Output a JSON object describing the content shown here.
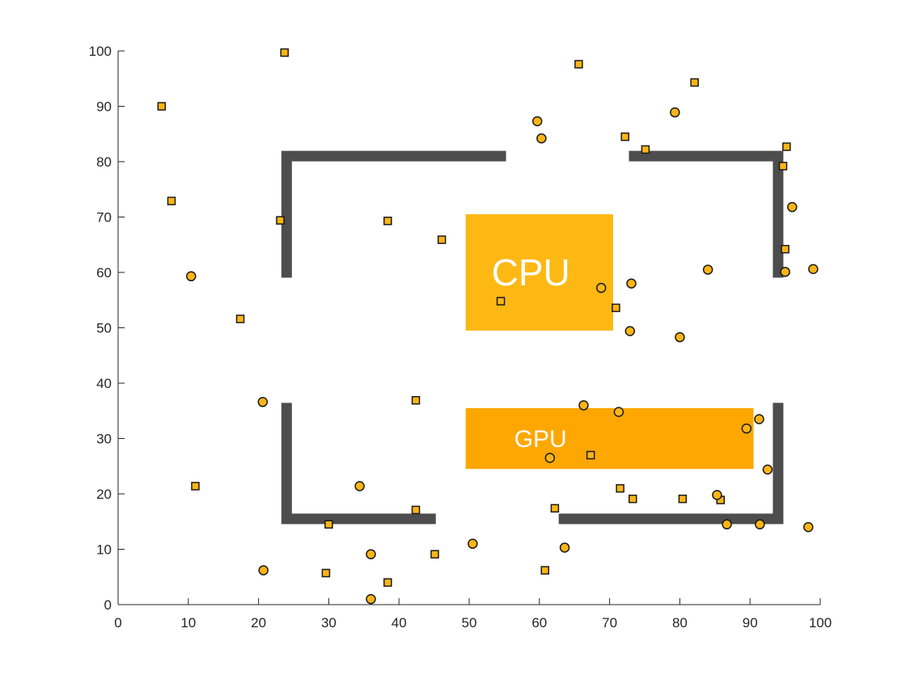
{
  "chart_data": {
    "type": "scatter",
    "title": "",
    "xlabel": "",
    "ylabel": "",
    "xlim": [
      0,
      100
    ],
    "ylim": [
      0,
      100
    ],
    "x_ticks": [
      "0",
      "10",
      "20",
      "30",
      "40",
      "50",
      "60",
      "70",
      "80",
      "90",
      "100"
    ],
    "y_ticks": [
      "0",
      "10",
      "20",
      "30",
      "40",
      "50",
      "60",
      "70",
      "80",
      "90",
      "100"
    ],
    "grid": false,
    "colors": {
      "marker_fill": "#fdb515",
      "marker_edge": "#1a1a1a",
      "wall": "#4d4d4d",
      "cpu": "#fdb813",
      "gpu": "#fea700"
    },
    "blocks": [
      {
        "name": "CPU",
        "x": [
          49.5,
          70.5
        ],
        "y": [
          49.5,
          70.5
        ]
      },
      {
        "name": "GPU",
        "x": [
          49.5,
          90.5
        ],
        "y": [
          24.5,
          35.5
        ]
      }
    ],
    "walls": [
      {
        "x": [
          24,
          24,
          54.5
        ],
        "y": [
          60,
          81,
          81
        ]
      },
      {
        "x": [
          73.5,
          94,
          94
        ],
        "y": [
          81,
          81,
          60
        ]
      },
      {
        "x": [
          24,
          24,
          44.5
        ],
        "y": [
          35.5,
          15.5,
          15.5
        ]
      },
      {
        "x": [
          63.5,
          94,
          94
        ],
        "y": [
          15.5,
          15.5,
          35.5
        ]
      }
    ],
    "series": [
      {
        "marker": "square",
        "x": [
          6.2,
          23.7,
          7.6,
          23.1,
          38.4,
          46.1,
          17.4,
          54.5,
          70.9,
          65.6,
          72.2,
          75.1,
          82.1,
          95.2,
          94.7,
          95.0,
          42.4,
          11.0,
          42.4,
          30.0,
          29.6,
          38.4,
          45.1,
          60.8,
          67.3,
          62.2,
          71.5,
          73.3,
          80.4,
          85.8
        ],
        "y": [
          90.0,
          99.7,
          72.9,
          69.4,
          69.3,
          65.9,
          51.6,
          54.8,
          53.6,
          97.6,
          84.5,
          82.2,
          94.3,
          82.7,
          79.2,
          64.2,
          36.9,
          21.4,
          17.1,
          14.5,
          5.7,
          4.0,
          9.1,
          6.2,
          27.0,
          17.4,
          21.0,
          19.1,
          19.1,
          18.9
        ]
      },
      {
        "marker": "circle",
        "x": [
          10.4,
          59.7,
          60.3,
          79.3,
          68.8,
          73.1,
          72.9,
          80.0,
          84.0,
          95.0,
          96.0,
          99.0,
          20.6,
          34.4,
          20.7,
          36.0,
          36.0,
          50.5,
          63.6,
          66.3,
          71.3,
          61.5,
          89.5,
          91.3,
          92.5,
          85.3,
          86.7,
          91.4,
          98.3
        ],
        "y": [
          59.3,
          87.3,
          84.2,
          88.9,
          57.2,
          58.0,
          49.4,
          48.3,
          60.5,
          60.1,
          71.8,
          60.6,
          36.6,
          21.4,
          6.2,
          9.1,
          1.0,
          11.0,
          10.3,
          36.0,
          34.8,
          26.5,
          31.8,
          33.5,
          24.4,
          19.8,
          14.5,
          14.5,
          14.0
        ]
      }
    ]
  }
}
